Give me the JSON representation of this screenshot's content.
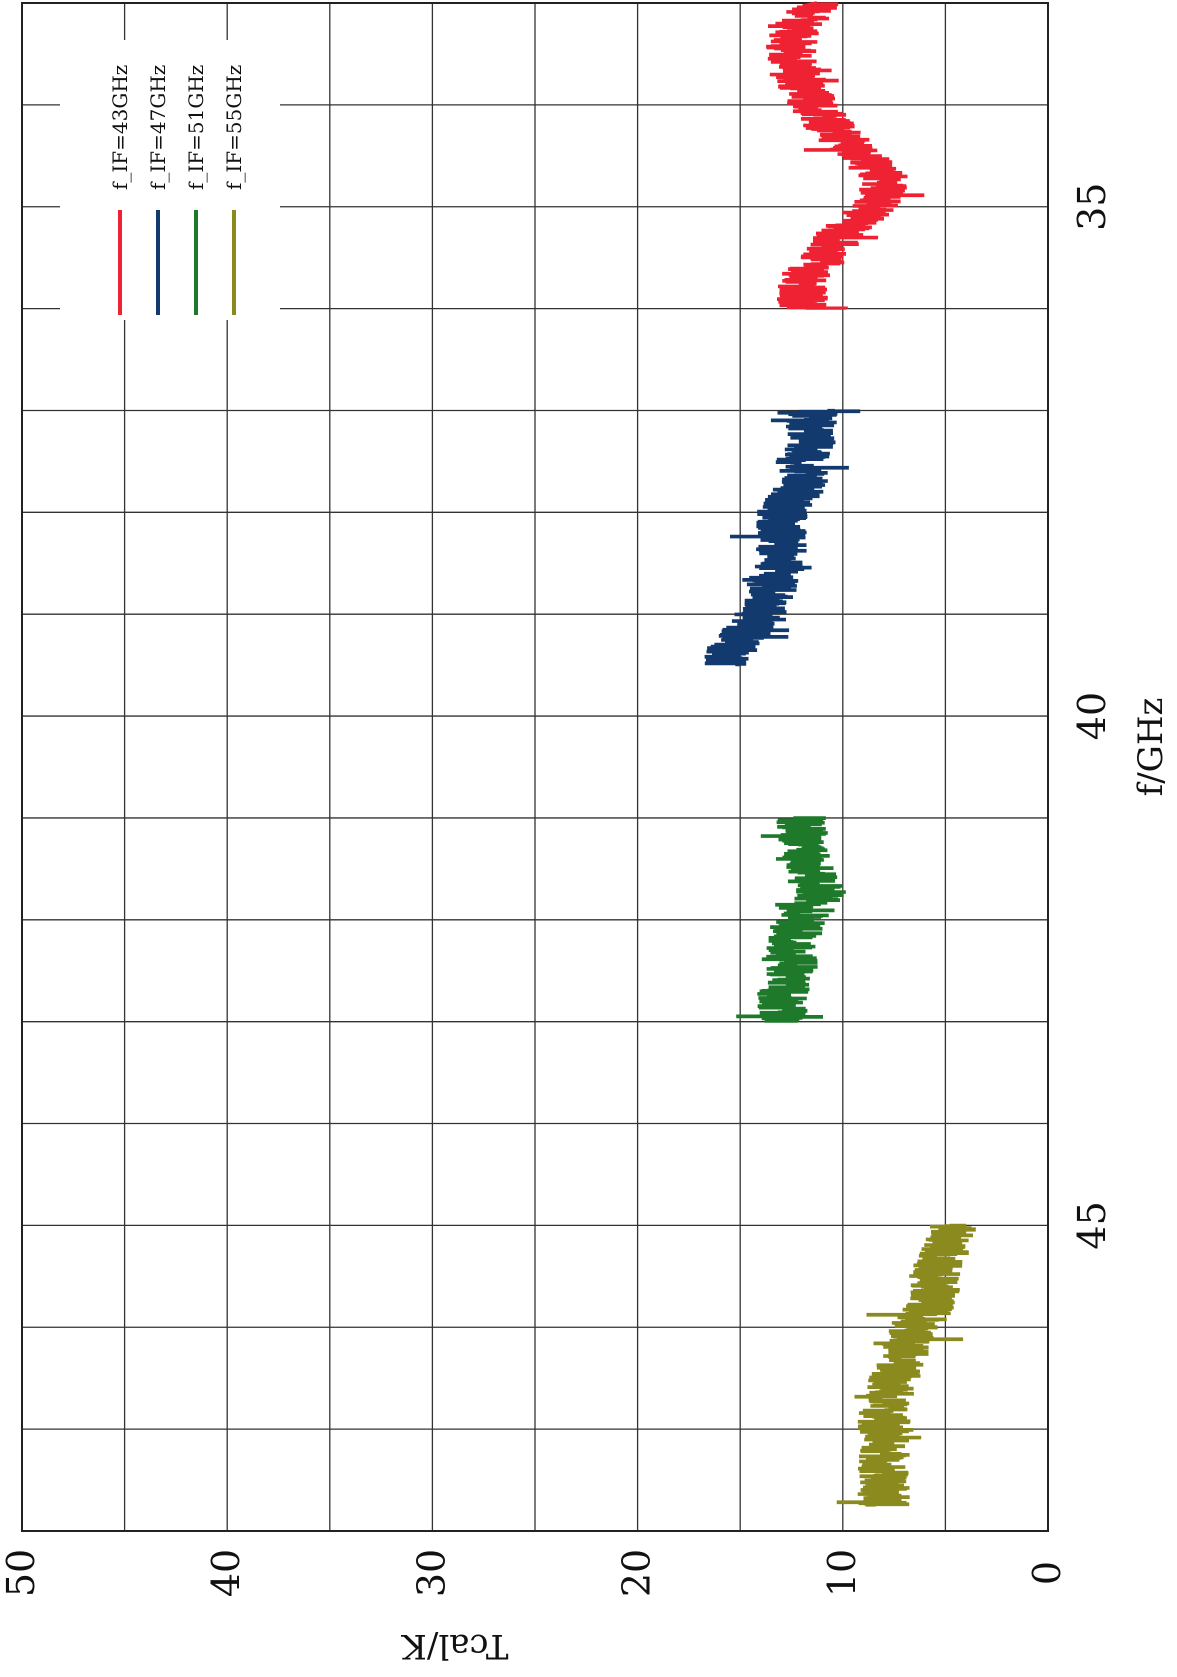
{
  "chart_data": {
    "type": "line",
    "title": "",
    "xlabel": "f/GHz",
    "ylabel": "Tcal/K",
    "xlim": [
      33,
      48
    ],
    "ylim": [
      0,
      50
    ],
    "x_ticks": [
      35,
      40,
      45
    ],
    "x_tick_labels": [
      "35",
      "40",
      "45"
    ],
    "y_ticks": [
      0,
      10,
      20,
      30,
      40,
      50
    ],
    "y_tick_labels": [
      "0",
      "10",
      "20",
      "30",
      "40",
      "50"
    ],
    "grid": true,
    "orientation": "rotated-90-clockwise",
    "legend_position": "top-right",
    "series": [
      {
        "name": "f_IF=43GHz",
        "color": "#ee2233",
        "x": [
          33.0,
          33.25,
          33.5,
          33.75,
          34.0,
          34.25,
          34.5,
          34.75,
          35.0,
          35.25,
          35.5,
          35.75,
          36.0
        ],
        "y": [
          11.0,
          12.5,
          12.5,
          12.0,
          11.5,
          10.5,
          9.0,
          8.0,
          8.5,
          10.0,
          11.0,
          12.0,
          12.0
        ]
      },
      {
        "name": "f_IF=47GHz",
        "color": "#123a6e",
        "x": [
          37.0,
          37.25,
          37.5,
          37.75,
          38.0,
          38.25,
          38.5,
          38.75,
          39.0,
          39.25,
          39.5
        ],
        "y": [
          11.5,
          11.5,
          12.0,
          12.0,
          13.0,
          13.0,
          13.0,
          13.5,
          14.0,
          15.0,
          16.0
        ]
      },
      {
        "name": "f_IF=51GHz",
        "color": "#1e7a2a",
        "x": [
          41.0,
          41.25,
          41.5,
          41.75,
          42.0,
          42.25,
          42.5,
          42.75,
          43.0
        ],
        "y": [
          12.0,
          12.0,
          11.5,
          11.0,
          12.0,
          12.5,
          12.5,
          13.0,
          13.0
        ]
      },
      {
        "name": "f_IF=55GHz",
        "color": "#8a8a1e",
        "x": [
          45.0,
          45.25,
          45.5,
          45.75,
          46.0,
          46.25,
          46.5,
          46.75,
          47.0,
          47.25,
          47.5,
          47.75
        ],
        "y": [
          4.5,
          5.0,
          5.5,
          5.5,
          6.5,
          7.0,
          7.5,
          8.0,
          8.0,
          8.0,
          8.0,
          8.0
        ]
      }
    ]
  }
}
